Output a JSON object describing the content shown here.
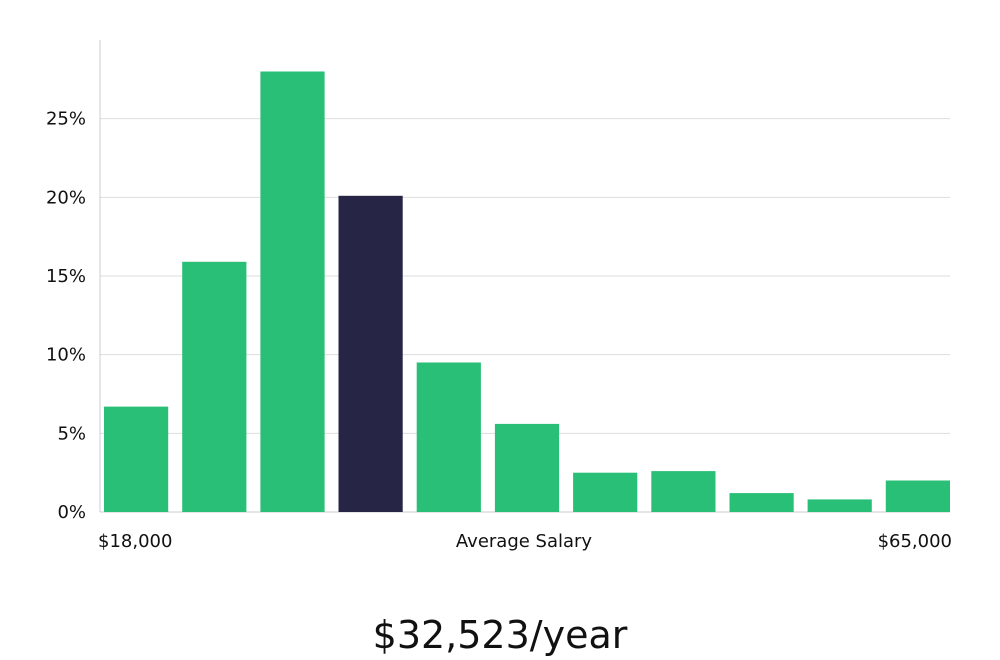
{
  "chart_data": {
    "type": "bar",
    "values": [
      6.7,
      15.9,
      28.0,
      20.1,
      9.5,
      5.6,
      2.5,
      2.6,
      1.2,
      0.8,
      2.0
    ],
    "highlight_index": 3,
    "ylim": [
      0,
      30
    ],
    "yticks": [
      0,
      5,
      10,
      15,
      20,
      25
    ],
    "ytick_labels": [
      "0%",
      "5%",
      "10%",
      "15%",
      "20%",
      "25%"
    ],
    "x_min_label": "$18,000",
    "x_max_label": "$65,000",
    "xlabel": "Average Salary",
    "grid": true,
    "colors": {
      "bar": "#2abf77",
      "highlight": "#272545",
      "grid": "#dddddd",
      "axis": "#cccccc"
    }
  },
  "summary": {
    "salary_text": "$32,523/year"
  }
}
